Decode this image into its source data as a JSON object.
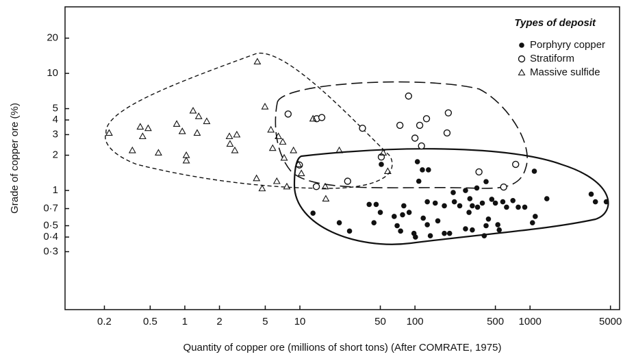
{
  "chart_data": {
    "type": "scatter",
    "xlabel": "Quantity of copper ore (millions of short tons) (After COMRATE, 1975)",
    "ylabel": "Grade of copper ore (%)",
    "legend_title": "Types of deposit",
    "legend": "upper right",
    "xscale": "log",
    "yscale": "log",
    "xlim": [
      0.091,
      6000
    ],
    "ylim": [
      0.096,
      37
    ],
    "xticks": [
      0.2,
      0.5,
      1,
      2,
      5,
      10,
      50,
      100,
      500,
      1000,
      5000
    ],
    "yticks": [
      20,
      10,
      5,
      4,
      3,
      2,
      1,
      {
        "value": 0.7,
        "label": "0·7"
      },
      {
        "value": 0.5,
        "label": "0·5"
      },
      {
        "value": 0.4,
        "label": "0·4"
      },
      {
        "value": 0.3,
        "label": "0·3"
      }
    ],
    "series": [
      {
        "name": "Porphyry copper",
        "marker": "filled-circle",
        "color": "#111111",
        "x": [
          51,
          13,
          22,
          27,
          40,
          46,
          44,
          50,
          66,
          70,
          75,
          80,
          89,
          98,
          101,
          105,
          108,
          116,
          131,
          118,
          128,
          136,
          128,
          158,
          180,
          200,
          215,
          220,
          245,
          275,
          300,
          295,
          315,
          345,
          350,
          385,
          415,
          435,
          465,
          500,
          415,
          315,
          275,
          400,
          525,
          540,
          580,
          625,
          710,
          790,
          900,
          1090,
          1050,
          1110,
          1400,
          3700,
          3400,
          4600,
          180,
          150,
          78
        ],
        "y": [
          1.67,
          0.64,
          0.53,
          0.45,
          0.76,
          0.76,
          0.53,
          0.65,
          0.6,
          0.5,
          0.45,
          0.74,
          0.65,
          0.43,
          0.4,
          1.76,
          1.2,
          1.5,
          1.5,
          0.58,
          0.51,
          0.41,
          0.8,
          0.55,
          0.43,
          0.43,
          0.96,
          0.8,
          0.74,
          1.0,
          0.85,
          0.65,
          0.74,
          1.05,
          0.72,
          0.78,
          1.19,
          0.57,
          0.84,
          0.78,
          0.5,
          0.46,
          0.47,
          0.41,
          0.51,
          0.46,
          0.8,
          0.72,
          0.82,
          0.72,
          0.72,
          1.46,
          0.53,
          0.6,
          0.85,
          0.8,
          0.93,
          0.8,
          0.74,
          0.78,
          0.62
        ]
      },
      {
        "name": "Stratiform",
        "marker": "open-circle",
        "color": "#111111",
        "x": [
          7.9,
          14,
          15.5,
          9.9,
          13.9,
          26,
          35,
          51,
          74,
          88,
          100,
          110,
          126,
          114,
          190,
          195,
          360,
          590,
          750
        ],
        "y": [
          4.5,
          4.1,
          4.2,
          1.65,
          1.08,
          1.2,
          3.4,
          1.93,
          3.6,
          6.4,
          2.8,
          3.6,
          4.1,
          2.4,
          3.1,
          4.6,
          1.44,
          1.07,
          1.67
        ]
      },
      {
        "name": "Massive sulfide",
        "marker": "triangle",
        "color": "#111111",
        "x": [
          0.22,
          0.35,
          0.41,
          0.43,
          0.48,
          0.59,
          0.85,
          0.95,
          1.03,
          1.03,
          1.18,
          1.32,
          1.28,
          1.55,
          2.44,
          2.47,
          2.83,
          2.72,
          4.27,
          4.97,
          5.6,
          5.8,
          6.5,
          7.1,
          7.3,
          8.8,
          4.2,
          4.7,
          7.7,
          6.3,
          9.7,
          10.3,
          16.6,
          16.8,
          22,
          53,
          58,
          13
        ],
        "y": [
          3.1,
          2.2,
          3.5,
          2.9,
          3.4,
          2.1,
          3.7,
          3.2,
          2.0,
          1.8,
          4.8,
          4.3,
          3.1,
          3.9,
          2.9,
          2.5,
          3.0,
          2.2,
          12.6,
          5.2,
          3.3,
          2.3,
          2.9,
          2.6,
          1.9,
          2.2,
          1.27,
          1.04,
          1.08,
          1.2,
          1.67,
          1.4,
          1.08,
          0.85,
          2.2,
          2.1,
          1.46,
          4.1
        ]
      }
    ]
  }
}
